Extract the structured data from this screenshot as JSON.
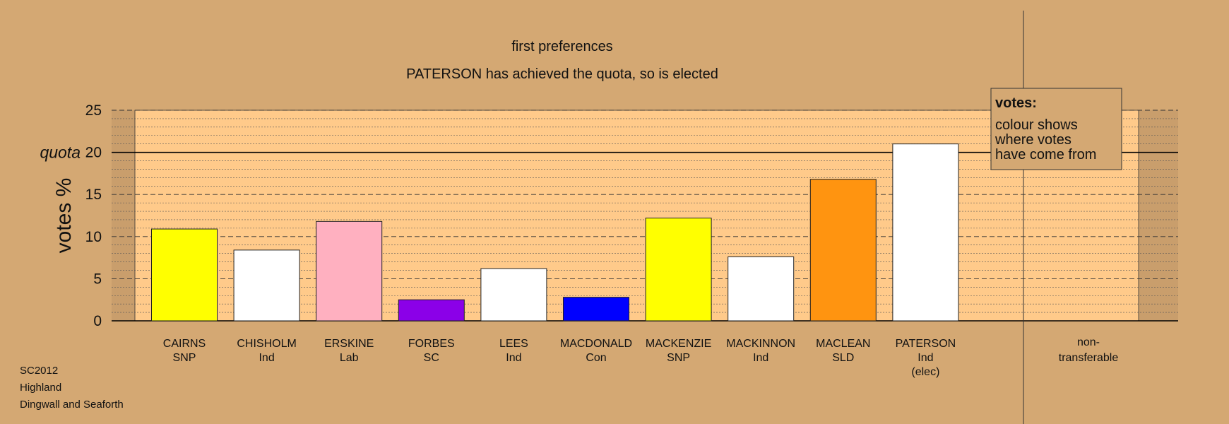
{
  "chart_data": {
    "type": "bar",
    "title": "first preferences",
    "subtitle": "PATERSON has achieved the quota, so is elected",
    "ylabel": "votes %",
    "ylim": [
      0,
      25
    ],
    "yticks": [
      0,
      5,
      10,
      15,
      20,
      25
    ],
    "quota": 20,
    "quota_label": "quota",
    "grid": true,
    "categories": [
      {
        "name": "CAIRNS",
        "party": "SNP",
        "status": ""
      },
      {
        "name": "CHISHOLM",
        "party": "Ind",
        "status": ""
      },
      {
        "name": "ERSKINE",
        "party": "Lab",
        "status": ""
      },
      {
        "name": "FORBES",
        "party": "SC",
        "status": ""
      },
      {
        "name": "LEES",
        "party": "Ind",
        "status": ""
      },
      {
        "name": "MACDONALD",
        "party": "Con",
        "status": ""
      },
      {
        "name": "MACKENZIE",
        "party": "SNP",
        "status": ""
      },
      {
        "name": "MACKINNON",
        "party": "Ind",
        "status": ""
      },
      {
        "name": "MACLEAN",
        "party": "SLD",
        "status": ""
      },
      {
        "name": "PATERSON",
        "party": "Ind",
        "status": "(elec)"
      }
    ],
    "values": [
      10.9,
      8.4,
      11.8,
      2.5,
      6.2,
      2.8,
      12.2,
      7.6,
      16.8,
      21.0
    ],
    "colors": [
      "#ffff00",
      "#ffffff",
      "#ffb0c0",
      "#8b00e8",
      "#ffffff",
      "#0000ff",
      "#ffff00",
      "#ffffff",
      "#ff9410",
      "#ffffff"
    ],
    "non_transferable": {
      "line1": "non-",
      "line2": "transferable",
      "value": 0
    },
    "legend": {
      "position": "top-right",
      "title": "votes:",
      "lines": [
        "colour shows",
        "where votes",
        "have come from"
      ]
    }
  },
  "footer": {
    "line1": "SC2012",
    "line2": "Highland",
    "line3": "Dingwall and Seaforth"
  },
  "colors": {
    "background": "#d4a873",
    "plot_band": "#ffca8a",
    "plot_outer": "#c99e6c"
  }
}
